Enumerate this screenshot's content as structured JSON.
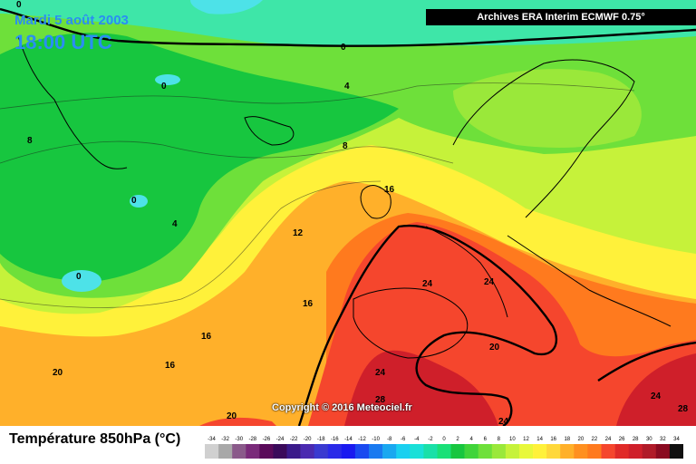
{
  "header": {
    "date": "Mardi 5 août 2003",
    "time": "18:00 UTC",
    "archive": "Archives ERA Interim ECMWF 0.75°"
  },
  "copyright": "Copyright © 2016 Meteociel.fr",
  "variable_label": "Température 850hPa (°C)",
  "map": {
    "type": "temperature 850hPa field",
    "contour_labels": [
      "0",
      "0",
      "0",
      "0",
      "0",
      "4",
      "4",
      "8",
      "8",
      "12",
      "16",
      "16",
      "16",
      "16",
      "20",
      "20",
      "24",
      "24",
      "24",
      "24",
      "24",
      "28",
      "28"
    ],
    "colors": {
      "deep_green": "#17c63f",
      "light_green": "#6ee03a",
      "aqua": "#3ee6a8",
      "cyan": "#4de2e8",
      "lime": "#c6f23a",
      "yellow": "#fff13a",
      "orange": "#ffb02a",
      "dark_orange": "#ff7a1e",
      "red": "#f5462d",
      "dark_red": "#cf1f2a"
    }
  },
  "legend": {
    "labels": [
      "-34",
      "-32",
      "-30",
      "-28",
      "-26",
      "-24",
      "-22",
      "-20",
      "-18",
      "-16",
      "-14",
      "-12",
      "-10",
      "-8",
      "-6",
      "-4",
      "-2",
      "0",
      "2",
      "4",
      "6",
      "8",
      "10",
      "12",
      "14",
      "16",
      "18",
      "20",
      "22",
      "24",
      "26",
      "28",
      "30",
      "32",
      "34"
    ],
    "colors": [
      "#d0d0d0",
      "#a8a8a8",
      "#8a5a8a",
      "#7a2a7a",
      "#5a0a5a",
      "#3a0a5a",
      "#3a1a8a",
      "#4a2ab0",
      "#3a3ad0",
      "#2a2ae8",
      "#1a1af0",
      "#1a4af0",
      "#1a7af0",
      "#1aa8f0",
      "#1ad0f0",
      "#1ae0d8",
      "#1ae0a8",
      "#1ae078",
      "#17c63f",
      "#40d43a",
      "#6ee03a",
      "#9ae83a",
      "#c6f23a",
      "#e8f83a",
      "#fff13a",
      "#ffd83a",
      "#ffb02a",
      "#ff9020",
      "#ff7a1e",
      "#f5462d",
      "#e02a28",
      "#cf1f2a",
      "#b01a28",
      "#8a0a20",
      "#101010"
    ]
  }
}
